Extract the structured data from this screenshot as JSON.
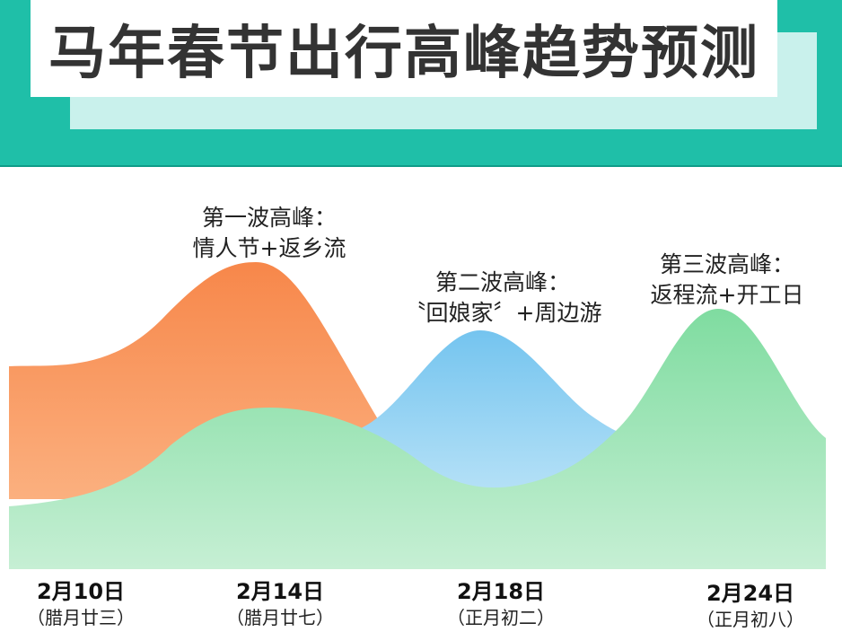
{
  "header": {
    "title": "马年春节出行高峰趋势预测"
  },
  "chart_data": {
    "type": "area",
    "title": "马年春节出行高峰趋势预测",
    "x_ticks": [
      {
        "date": "2月10日",
        "lunar": "（腊月廿三）"
      },
      {
        "date": "2月14日",
        "lunar": "（腊月廿七）"
      },
      {
        "date": "2月18日",
        "lunar": "（正月初二）"
      },
      {
        "date": "2月24日",
        "lunar": "（正月初八）"
      }
    ],
    "annotations": [
      {
        "line1": "第一波高峰：",
        "line2": "情人节+返乡流"
      },
      {
        "line1": "第二波高峰：",
        "line2": "〝回娘家〞+周边游"
      },
      {
        "line1": "第三波高峰：",
        "line2": "返程流+开工日"
      }
    ],
    "series": [
      {
        "color": "#f7894a",
        "peak_date": "2月14日"
      },
      {
        "color": "#7cc8ef",
        "peak_date": "2月18日"
      },
      {
        "color": "#86dfa4",
        "peak_date": "2月24日"
      }
    ],
    "y_axis_shown": false,
    "grid": false
  }
}
